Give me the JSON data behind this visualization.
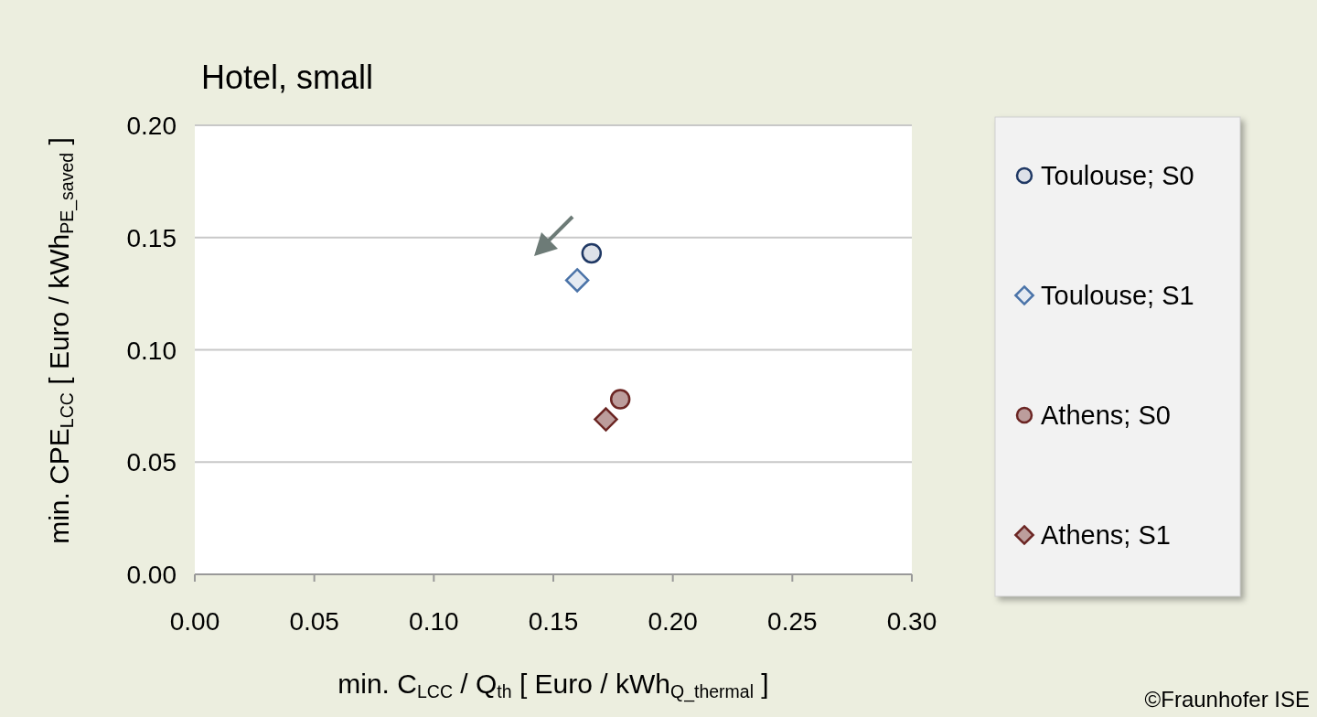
{
  "chart_data": {
    "type": "scatter",
    "title": "Hotel, small",
    "xlabel": "min. C$_{LCC}$ / Q$_{th}$  [ Euro / kWh$_{Q_thermal}$ ]",
    "ylabel": "min. CPE$_{LCC}$  [ Euro / kWh$_{PE_saved}$ ]",
    "xlim": [
      0,
      0.3
    ],
    "xticks": [
      {
        "value": 0,
        "label": "0.00"
      },
      {
        "value": 0.05,
        "label": "0.05"
      },
      {
        "value": 0.1,
        "label": "0.10"
      },
      {
        "value": 0.15,
        "label": "0.15"
      },
      {
        "value": 0.2,
        "label": "0.20"
      },
      {
        "value": 0.25,
        "label": "0.25"
      },
      {
        "value": 0.3,
        "label": "0.30"
      }
    ],
    "ylim": [
      0,
      0.2
    ],
    "yticks": [
      {
        "value": 0,
        "label": "0.00"
      },
      {
        "value": 0.05,
        "label": "0.05"
      },
      {
        "value": 0.1,
        "label": "0.10"
      },
      {
        "value": 0.15,
        "label": "0.15"
      },
      {
        "value": 0.2,
        "label": "0.20"
      }
    ],
    "grid": "y",
    "legend": "right",
    "series": [
      {
        "name": "Toulouse; S0",
        "color": "#1f3864",
        "marker": "circle",
        "x": [
          0.166
        ],
        "values": [
          0.143
        ]
      },
      {
        "name": "Toulouse; S1",
        "color": "#4a73a8",
        "marker": "diamond",
        "x": [
          0.16
        ],
        "values": [
          0.131
        ]
      },
      {
        "name": "Athens; S0",
        "color": "#6b2523",
        "marker": "circle",
        "x": [
          0.178
        ],
        "values": [
          0.078
        ]
      },
      {
        "name": "Athens; S1",
        "color": "#6b2523",
        "marker": "diamond",
        "x": [
          0.172
        ],
        "values": [
          0.069
        ]
      }
    ],
    "annotations": [
      "©Fraunhofer ISE"
    ]
  }
}
